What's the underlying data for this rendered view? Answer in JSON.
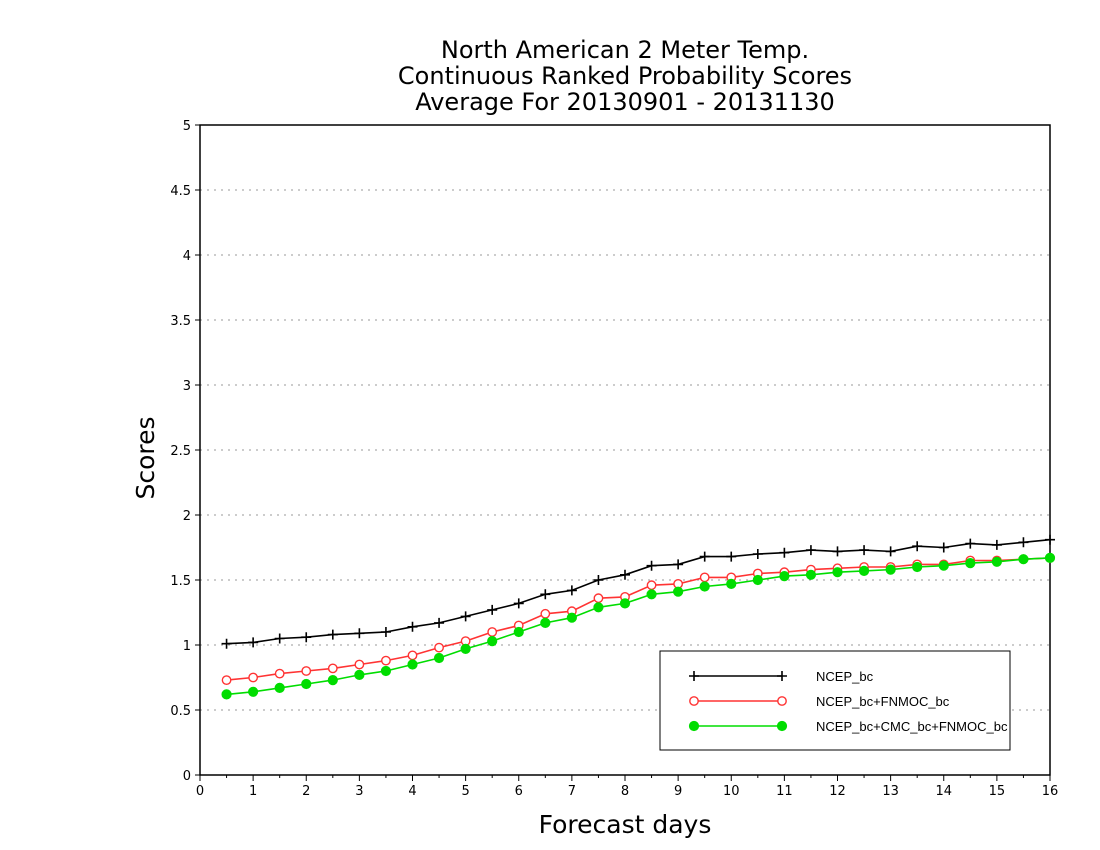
{
  "chart_data": {
    "type": "line",
    "title_lines": [
      "North American 2 Meter Temp.",
      "Continuous Ranked Probability Scores",
      "Average For 20130901 - 20131130"
    ],
    "xlabel": "Forecast days",
    "ylabel": "Scores",
    "xlim": [
      0,
      16
    ],
    "ylim": [
      0,
      5
    ],
    "x_ticks": [
      "0",
      "1",
      "2",
      "3",
      "4",
      "5",
      "6",
      "7",
      "8",
      "9",
      "10",
      "11",
      "12",
      "13",
      "14",
      "15",
      "16"
    ],
    "y_ticks": [
      "0",
      "0.5",
      "1",
      "1.5",
      "2",
      "2.5",
      "3",
      "3.5",
      "4",
      "4.5",
      "5"
    ],
    "grid": true,
    "legend_position": "bottom-right",
    "x": [
      0.5,
      1,
      1.5,
      2,
      2.5,
      3,
      3.5,
      4,
      4.5,
      5,
      5.5,
      6,
      6.5,
      7,
      7.5,
      8,
      8.5,
      9,
      9.5,
      10,
      10.5,
      11,
      11.5,
      12,
      12.5,
      13,
      13.5,
      14,
      14.5,
      15,
      15.5,
      16
    ],
    "series": [
      {
        "name": "NCEP_bc",
        "color": "#000000",
        "marker": "plus",
        "values": [
          1.01,
          1.02,
          1.05,
          1.06,
          1.08,
          1.09,
          1.1,
          1.14,
          1.17,
          1.22,
          1.27,
          1.32,
          1.39,
          1.42,
          1.5,
          1.54,
          1.61,
          1.62,
          1.68,
          1.68,
          1.7,
          1.71,
          1.73,
          1.72,
          1.73,
          1.72,
          1.76,
          1.75,
          1.78,
          1.77,
          1.79,
          1.81
        ]
      },
      {
        "name": "NCEP_bc+FNMOC_bc",
        "color": "#ff3333",
        "marker": "open-circle",
        "values": [
          0.73,
          0.75,
          0.78,
          0.8,
          0.82,
          0.85,
          0.88,
          0.92,
          0.98,
          1.03,
          1.1,
          1.15,
          1.24,
          1.26,
          1.36,
          1.37,
          1.46,
          1.47,
          1.52,
          1.52,
          1.55,
          1.56,
          1.58,
          1.59,
          1.6,
          1.6,
          1.62,
          1.62,
          1.65,
          1.65,
          1.66,
          1.67
        ]
      },
      {
        "name": "NCEP_bc+CMC_bc+FNMOC_bc",
        "color": "#00dd00",
        "marker": "filled-circle",
        "values": [
          0.62,
          0.64,
          0.67,
          0.7,
          0.73,
          0.77,
          0.8,
          0.85,
          0.9,
          0.97,
          1.03,
          1.1,
          1.17,
          1.21,
          1.29,
          1.32,
          1.39,
          1.41,
          1.45,
          1.47,
          1.5,
          1.53,
          1.54,
          1.56,
          1.57,
          1.58,
          1.6,
          1.61,
          1.63,
          1.64,
          1.66,
          1.67
        ]
      }
    ]
  }
}
